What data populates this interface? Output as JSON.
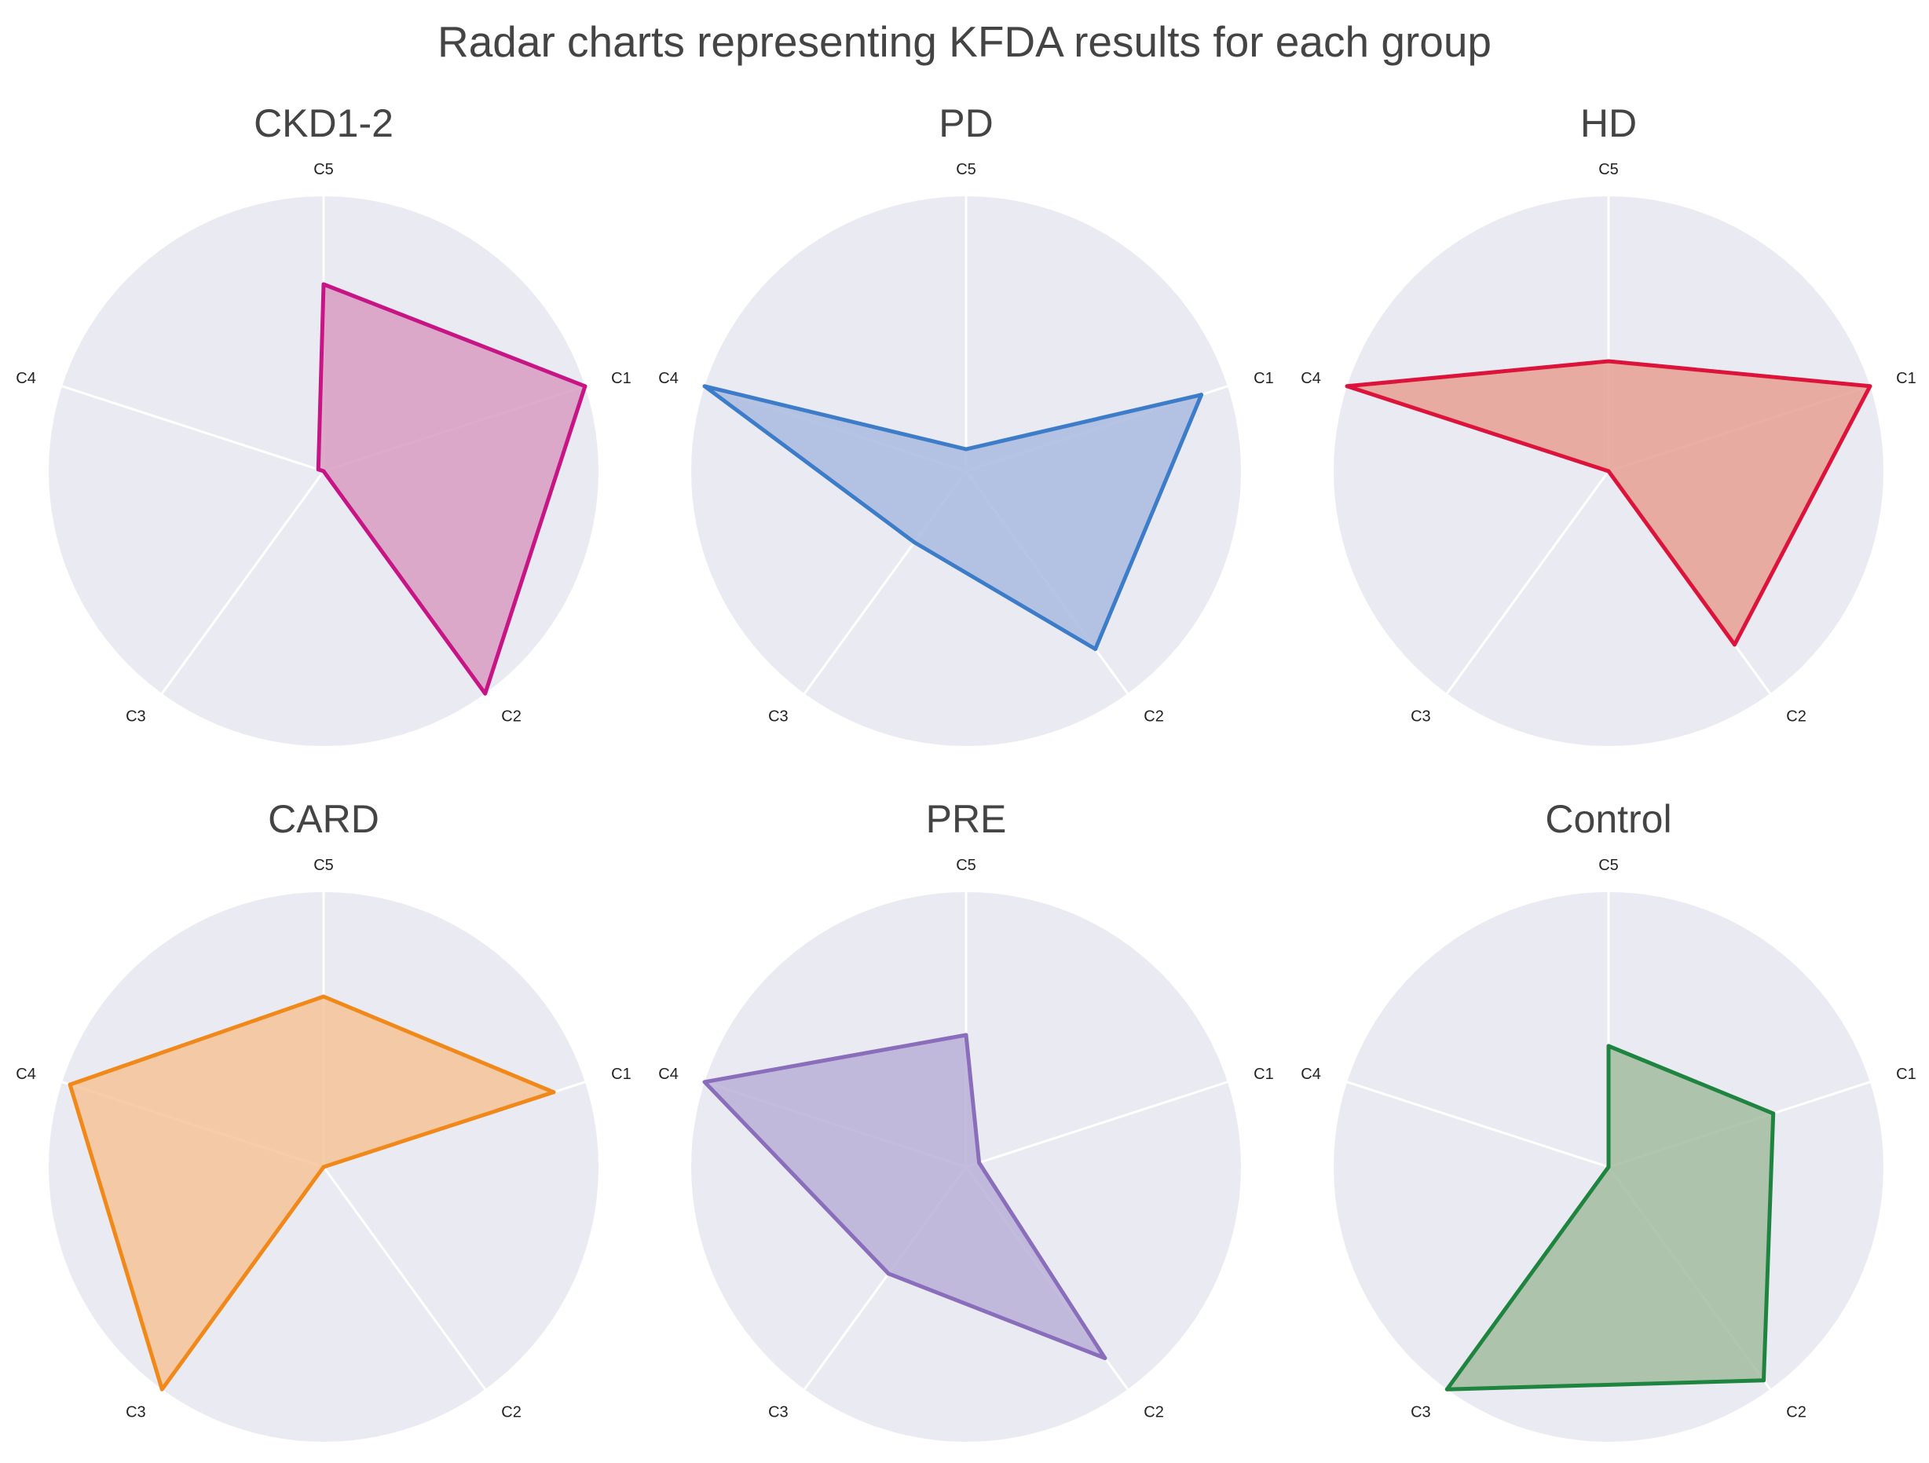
{
  "title": "Radar charts representing KFDA results for each group",
  "chart_data": [
    {
      "type": "radar",
      "title": "CKD1-2",
      "axes": [
        "C1",
        "C2",
        "C3",
        "C4",
        "C5"
      ],
      "values": [
        1.0,
        1.0,
        0.0,
        0.02,
        0.68
      ],
      "rmax": 1.0,
      "color": "#c71585",
      "fill": "#d99cc2"
    },
    {
      "type": "radar",
      "title": "PD",
      "axes": [
        "C1",
        "C2",
        "C3",
        "C4",
        "C5"
      ],
      "values": [
        0.9,
        0.8,
        0.32,
        1.0,
        0.08
      ],
      "rmax": 1.0,
      "color": "#3d7cc9",
      "fill": "#a9badf"
    },
    {
      "type": "radar",
      "title": "HD",
      "axes": [
        "C1",
        "C2",
        "C3",
        "C4",
        "C5"
      ],
      "values": [
        1.0,
        0.78,
        0.0,
        1.0,
        0.4
      ],
      "rmax": 1.0,
      "color": "#dc143c",
      "fill": "#e6a094"
    },
    {
      "type": "radar",
      "title": "CARD",
      "axes": [
        "C1",
        "C2",
        "C3",
        "C4",
        "C5"
      ],
      "values": [
        0.88,
        0.0,
        1.0,
        0.97,
        0.62
      ],
      "rmax": 1.0,
      "color": "#f0891a",
      "fill": "#f4c498"
    },
    {
      "type": "radar",
      "title": "PRE",
      "axes": [
        "C1",
        "C2",
        "C3",
        "C4",
        "C5"
      ],
      "values": [
        0.05,
        0.86,
        0.48,
        1.0,
        0.48
      ],
      "rmax": 1.0,
      "color": "#8a6dbb",
      "fill": "#b9b0d7"
    },
    {
      "type": "radar",
      "title": "Control",
      "axes": [
        "C1",
        "C2",
        "C3",
        "C4",
        "C5"
      ],
      "values": [
        0.63,
        0.96,
        1.0,
        0.0,
        0.44
      ],
      "rmax": 1.0,
      "color": "#1e843f",
      "fill": "#a2bc9f"
    }
  ]
}
